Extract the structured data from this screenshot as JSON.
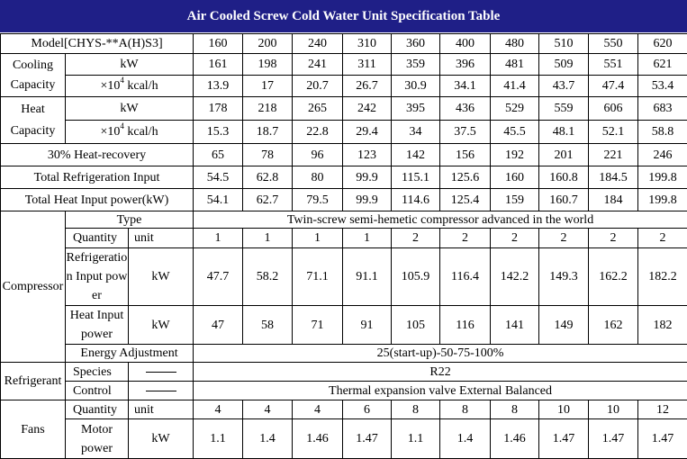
{
  "title": "Air Cooled Screw Cold Water Unit Specification Table",
  "model": {
    "label": "Model[CHYS-**A(H)S3]",
    "values": [
      "160",
      "200",
      "240",
      "310",
      "360",
      "400",
      "480",
      "510",
      "550",
      "620"
    ]
  },
  "cooling": {
    "label": "Cooling Capacity",
    "kw_unit": "kW",
    "kw": [
      "161",
      "198",
      "241",
      "311",
      "359",
      "396",
      "481",
      "509",
      "551",
      "621"
    ],
    "kcal_unit_prefix": "×10",
    "kcal_unit_exp": "4",
    "kcal_unit_suffix": " kcal/h",
    "kcal": [
      "13.9",
      "17",
      "20.7",
      "26.7",
      "30.9",
      "34.1",
      "41.4",
      "43.7",
      "47.4",
      "53.4"
    ]
  },
  "heat": {
    "label": "Heat Capacity",
    "kw_unit": "kW",
    "kw": [
      "178",
      "218",
      "265",
      "242",
      "395",
      "436",
      "529",
      "559",
      "606",
      "683"
    ],
    "kcal_unit_prefix": "×10",
    "kcal_unit_exp": "4",
    "kcal_unit_suffix": " kcal/h",
    "kcal": [
      "15.3",
      "18.7",
      "22.8",
      "29.4",
      "34",
      "37.5",
      "45.5",
      "48.1",
      "52.1",
      "58.8"
    ]
  },
  "heat_recovery": {
    "label": "30% Heat-recovery",
    "values": [
      "65",
      "78",
      "96",
      "123",
      "142",
      "156",
      "192",
      "201",
      "221",
      "246"
    ]
  },
  "total_refrigeration": {
    "label": "Total Refrigeration Input",
    "values": [
      "54.5",
      "62.8",
      "80",
      "99.9",
      "115.1",
      "125.6",
      "160",
      "160.8",
      "184.5",
      "199.8"
    ]
  },
  "total_heat": {
    "label": "Total Heat Input power(kW)",
    "values": [
      "54.1",
      "62.7",
      "79.5",
      "99.9",
      "114.6",
      "125.4",
      "159",
      "160.7",
      "184",
      "199.8"
    ]
  },
  "compressor": {
    "label": "Compressor",
    "type_label": "Type",
    "type_value": "Twin-screw semi-hemetic compressor advanced in the world",
    "quantity_label": "Quantity",
    "quantity_unit": "unit",
    "quantity": [
      "1",
      "1",
      "1",
      "1",
      "2",
      "2",
      "2",
      "2",
      "2",
      "2"
    ],
    "refrig_label": "Refrigeration Input power",
    "refrig_unit": "kW",
    "refrig": [
      "47.7",
      "58.2",
      "71.1",
      "91.1",
      "105.9",
      "116.4",
      "142.2",
      "149.3",
      "162.2",
      "182.2"
    ],
    "heatin_label": "Heat Input power",
    "heatin_unit": "kW",
    "heatin": [
      "47",
      "58",
      "71",
      "91",
      "105",
      "116",
      "141",
      "149",
      "162",
      "182"
    ],
    "energy_label": "Energy Adjustment",
    "energy_value": "25(start-up)-50-75-100%"
  },
  "refrigerant": {
    "label": "Refrigerant",
    "species_label": "Species",
    "species_value": "R22",
    "control_label": "Control",
    "control_value": "Thermal expansion valve External Balanced"
  },
  "fans": {
    "label": "Fans",
    "quantity_label": "Quantity",
    "quantity_unit": "unit",
    "quantity": [
      "4",
      "4",
      "4",
      "6",
      "8",
      "8",
      "8",
      "10",
      "10",
      "12"
    ],
    "motor_label": "Motor power",
    "motor_unit": "kW",
    "motor": [
      "1.1",
      "1.4",
      "1.46",
      "1.47",
      "1.1",
      "1.4",
      "1.46",
      "1.47",
      "1.47",
      "1.47"
    ]
  }
}
